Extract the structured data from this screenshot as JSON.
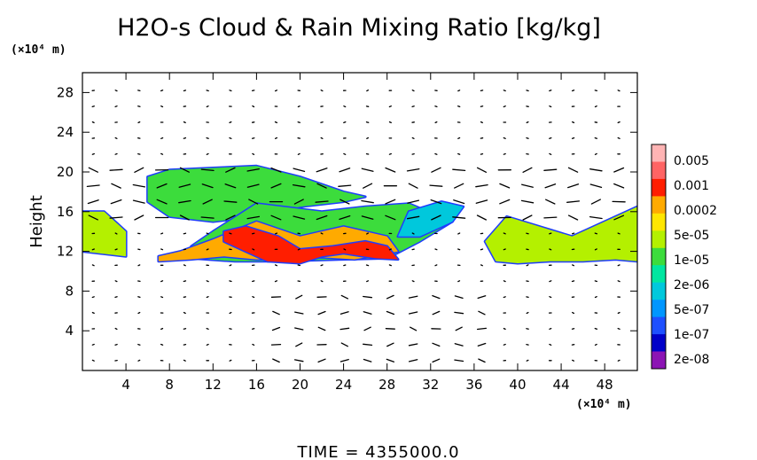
{
  "chart_data": {
    "type": "heatmap",
    "title": "H2O-s Cloud & Rain Mixing Ratio [kg/kg]",
    "ylabel": "Height",
    "xunit": "(×10⁴ m)",
    "yunit": "(×10⁴ m)",
    "xlim": [
      0,
      51
    ],
    "ylim": [
      0,
      30
    ],
    "xticks": [
      4,
      8,
      12,
      16,
      20,
      24,
      28,
      32,
      36,
      40,
      44,
      48
    ],
    "yticks": [
      4,
      8,
      12,
      16,
      20,
      24,
      28
    ],
    "time_label": "TIME  =  4355000.0",
    "colorbar": {
      "labels": [
        "0.005",
        "0.001",
        "0.0002",
        "5e-05",
        "1e-05",
        "2e-06",
        "5e-07",
        "1e-07",
        "2e-08"
      ],
      "colors": [
        "#ffb4b4",
        "#ff6464",
        "#ff1e00",
        "#ffaa00",
        "#ffe600",
        "#b4f000",
        "#3cdc3c",
        "#00e6a0",
        "#00c8dc",
        "#0096ff",
        "#1e50ff",
        "#0000c8",
        "#8c14b4"
      ]
    },
    "cloud_regions": [
      {
        "x": [
          0,
          4,
          4,
          2,
          0
        ],
        "y": [
          12,
          11.5,
          14,
          16,
          16
        ],
        "level": "5e-05"
      },
      {
        "x": [
          6,
          8,
          12,
          16,
          20,
          24,
          26,
          24,
          20,
          16,
          12,
          8,
          6
        ],
        "y": [
          19.5,
          20.2,
          20.4,
          20.6,
          19.5,
          18,
          17.5,
          17,
          16.5,
          15.5,
          15,
          15.5,
          17
        ],
        "level": "1e-05"
      },
      {
        "x": [
          10,
          14,
          18,
          24,
          28,
          31,
          34,
          30,
          26,
          22,
          16,
          12,
          10
        ],
        "y": [
          11.3,
          11,
          11,
          11.2,
          11.3,
          13,
          15,
          16.8,
          16.5,
          16,
          16.8,
          14,
          12.5
        ],
        "level": "1e-05"
      },
      {
        "x": [
          7,
          10,
          13,
          16,
          19,
          22,
          25,
          29,
          28,
          24,
          20,
          16,
          12,
          9,
          7
        ],
        "y": [
          11,
          11.2,
          11.5,
          11.2,
          11.2,
          11.4,
          11.2,
          12,
          13.5,
          14.5,
          13.5,
          15,
          13.2,
          12,
          11.5
        ],
        "level": "0.0002"
      },
      {
        "x": [
          13,
          15,
          17,
          20,
          22,
          24,
          27,
          29,
          28,
          26,
          23,
          20,
          18,
          15,
          13
        ],
        "y": [
          13,
          12,
          11,
          10.8,
          11.5,
          11.8,
          11.3,
          11.2,
          12.5,
          13,
          12.5,
          12.2,
          13.5,
          14.5,
          14
        ],
        "level": "0.001"
      },
      {
        "x": [
          38,
          40,
          43,
          46,
          49,
          51,
          51,
          48,
          45,
          42,
          39,
          37,
          38
        ],
        "y": [
          11,
          10.8,
          11,
          11,
          11.2,
          11,
          16.5,
          15,
          13.5,
          14.5,
          15.5,
          13,
          11
        ],
        "level": "5e-05"
      },
      {
        "x": [
          29,
          31,
          34,
          35,
          33,
          30
        ],
        "y": [
          13.5,
          13.5,
          15,
          16.5,
          17,
          16
        ],
        "level": "5e-07"
      }
    ]
  }
}
